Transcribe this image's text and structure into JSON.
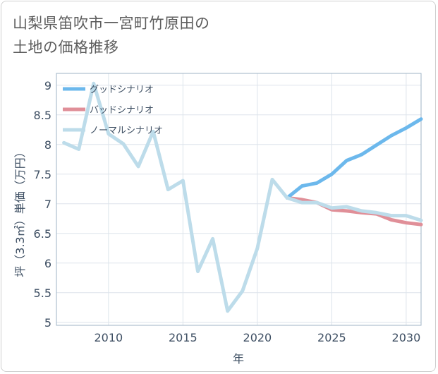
{
  "title": {
    "line1": "山梨県笛吹市一宮町竹原田の",
    "line2": "土地の価格推移"
  },
  "chart_data": {
    "type": "line",
    "title": "山梨県笛吹市一宮町竹原田の土地の価格推移",
    "xlabel": "年",
    "ylabel": "坪（3.3㎡）単価（万円）",
    "xlim": [
      2006.5,
      2031
    ],
    "ylim": [
      4.95,
      9.2
    ],
    "xticks": [
      2010,
      2015,
      2020,
      2025,
      2030
    ],
    "yticks": [
      5,
      5.5,
      6,
      6.5,
      7,
      7.5,
      8,
      8.5,
      9
    ],
    "grid": true,
    "legend_position": "top-left",
    "series": [
      {
        "name": "グッドシナリオ",
        "color": "#6cb8ec",
        "x": [
          2022,
          2023,
          2024,
          2025,
          2026,
          2027,
          2028,
          2029,
          2030,
          2031
        ],
        "y": [
          7.1,
          7.3,
          7.35,
          7.5,
          7.73,
          7.83,
          7.99,
          8.15,
          8.28,
          8.43
        ]
      },
      {
        "name": "バッドシナリオ",
        "color": "#e08f98",
        "x": [
          2022,
          2023,
          2024,
          2025,
          2026,
          2027,
          2028,
          2029,
          2030,
          2031
        ],
        "y": [
          7.1,
          7.07,
          7.02,
          6.9,
          6.88,
          6.85,
          6.83,
          6.73,
          6.68,
          6.65
        ]
      },
      {
        "name": "ノーマルシナリオ",
        "color": "#bddcea",
        "x": [
          2007,
          2008,
          2009,
          2010,
          2011,
          2012,
          2013,
          2014,
          2015,
          2016,
          2017,
          2018,
          2019,
          2020,
          2021,
          2022,
          2023,
          2024,
          2025,
          2026,
          2027,
          2028,
          2029,
          2030,
          2031
        ],
        "y": [
          8.03,
          7.92,
          9.03,
          8.18,
          8.01,
          7.63,
          8.22,
          7.24,
          7.39,
          5.86,
          6.41,
          5.19,
          5.53,
          6.25,
          7.41,
          7.1,
          7.02,
          7.02,
          6.93,
          6.95,
          6.88,
          6.85,
          6.8,
          6.8,
          6.72
        ]
      }
    ]
  }
}
